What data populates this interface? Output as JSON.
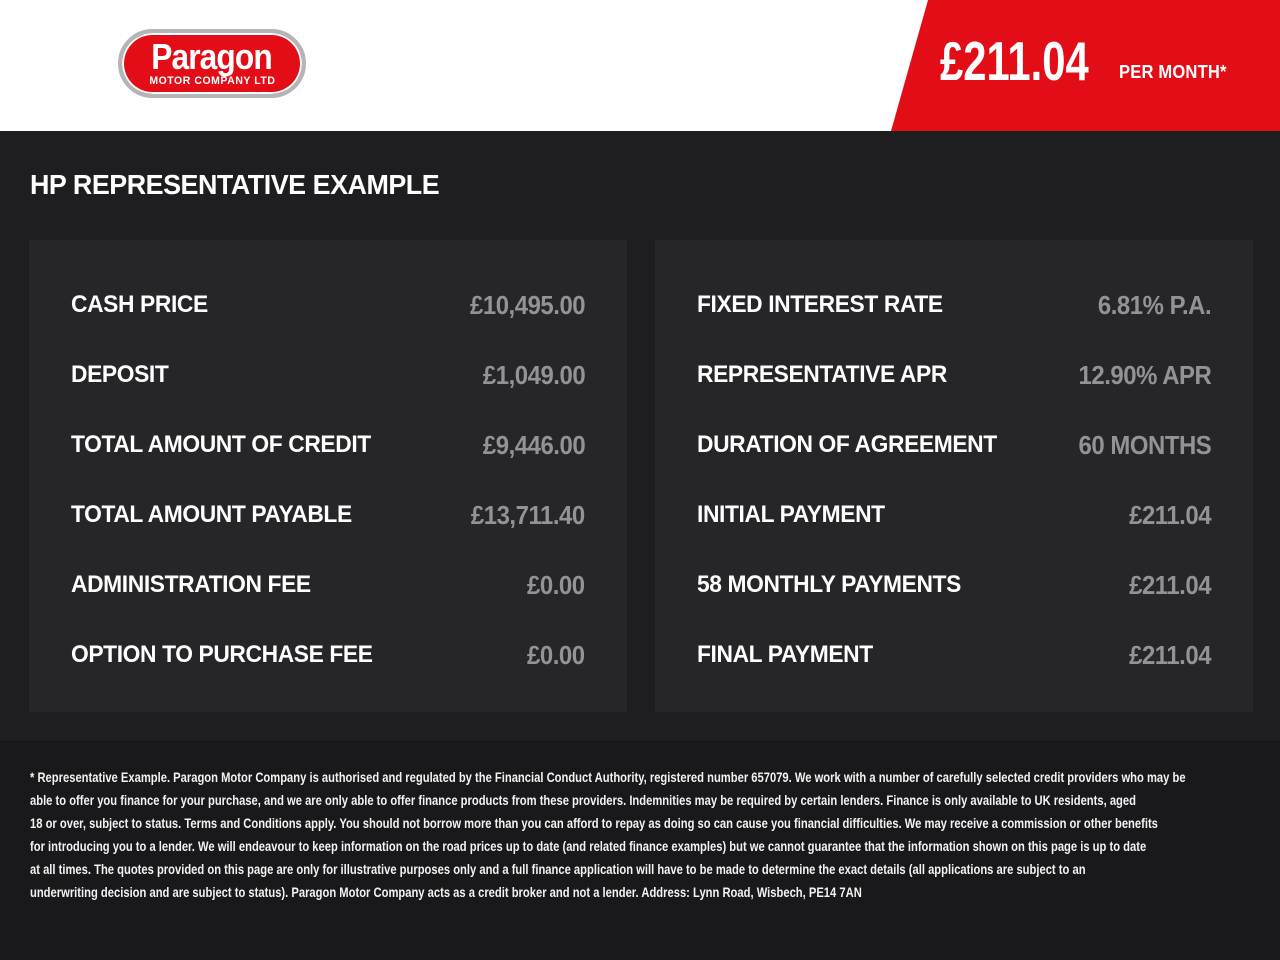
{
  "header": {
    "logo": {
      "name": "Paragon",
      "subtitle": "MOTOR COMPANY LTD"
    },
    "banner": {
      "amount": "£211.04",
      "period": "PER MONTH*"
    }
  },
  "title": "HP REPRESENTATIVE EXAMPLE",
  "panels": {
    "left": {
      "rows": [
        {
          "label": "CASH PRICE",
          "value": "£10,495.00"
        },
        {
          "label": "DEPOSIT",
          "value": "£1,049.00"
        },
        {
          "label": "TOTAL AMOUNT OF CREDIT",
          "value": "£9,446.00"
        },
        {
          "label": "TOTAL AMOUNT PAYABLE",
          "value": "£13,711.40"
        },
        {
          "label": "ADMINISTRATION FEE",
          "value": "£0.00"
        },
        {
          "label": "OPTION TO PURCHASE FEE",
          "value": "£0.00"
        }
      ]
    },
    "right": {
      "rows": [
        {
          "label": "FIXED INTEREST RATE",
          "value": "6.81% P.A."
        },
        {
          "label": "REPRESENTATIVE APR",
          "value": "12.90% APR"
        },
        {
          "label": "DURATION OF AGREEMENT",
          "value": "60 MONTHS"
        },
        {
          "label": "INITIAL PAYMENT",
          "value": "£211.04"
        },
        {
          "label": "58 MONTHLY PAYMENTS",
          "value": "£211.04"
        },
        {
          "label": "FINAL PAYMENT",
          "value": "£211.04"
        }
      ]
    }
  },
  "disclaimer": {
    "lines": [
      "* Representative Example. Paragon Motor Company is authorised and regulated by the Financial Conduct Authority, registered number 657079. We work with a number of carefully selected credit providers who may be",
      "able to offer you finance for your purchase, and we are only able to offer finance products from these providers. Indemnities may be required by certain lenders. Finance is only available to UK residents, aged",
      "18 or over, subject to status. Terms and Conditions apply. You should not borrow more than you can afford to repay as doing so can cause you financial difficulties. We may receive a commission or other benefits",
      "for introducing you to a lender. We will endeavour to keep information on the road prices up to date (and related finance examples) but we cannot guarantee that the information shown on this page is up to date",
      "at all times. The quotes provided on this page are only for illustrative purposes only and a full finance application will have to be made to determine the exact details (all applications are subject to an",
      "underwriting decision and are subject to status). Paragon Motor Company acts as a credit broker and not a lender. Address: Lynn Road, Wisbech, PE14 7AN"
    ]
  },
  "colors": {
    "brand_red": "#e30d18",
    "page_background": "#1e1e20",
    "panel_background": "#262629",
    "footer_background": "#19191b",
    "value_grey": "#939396",
    "header_white": "#ffffff"
  }
}
